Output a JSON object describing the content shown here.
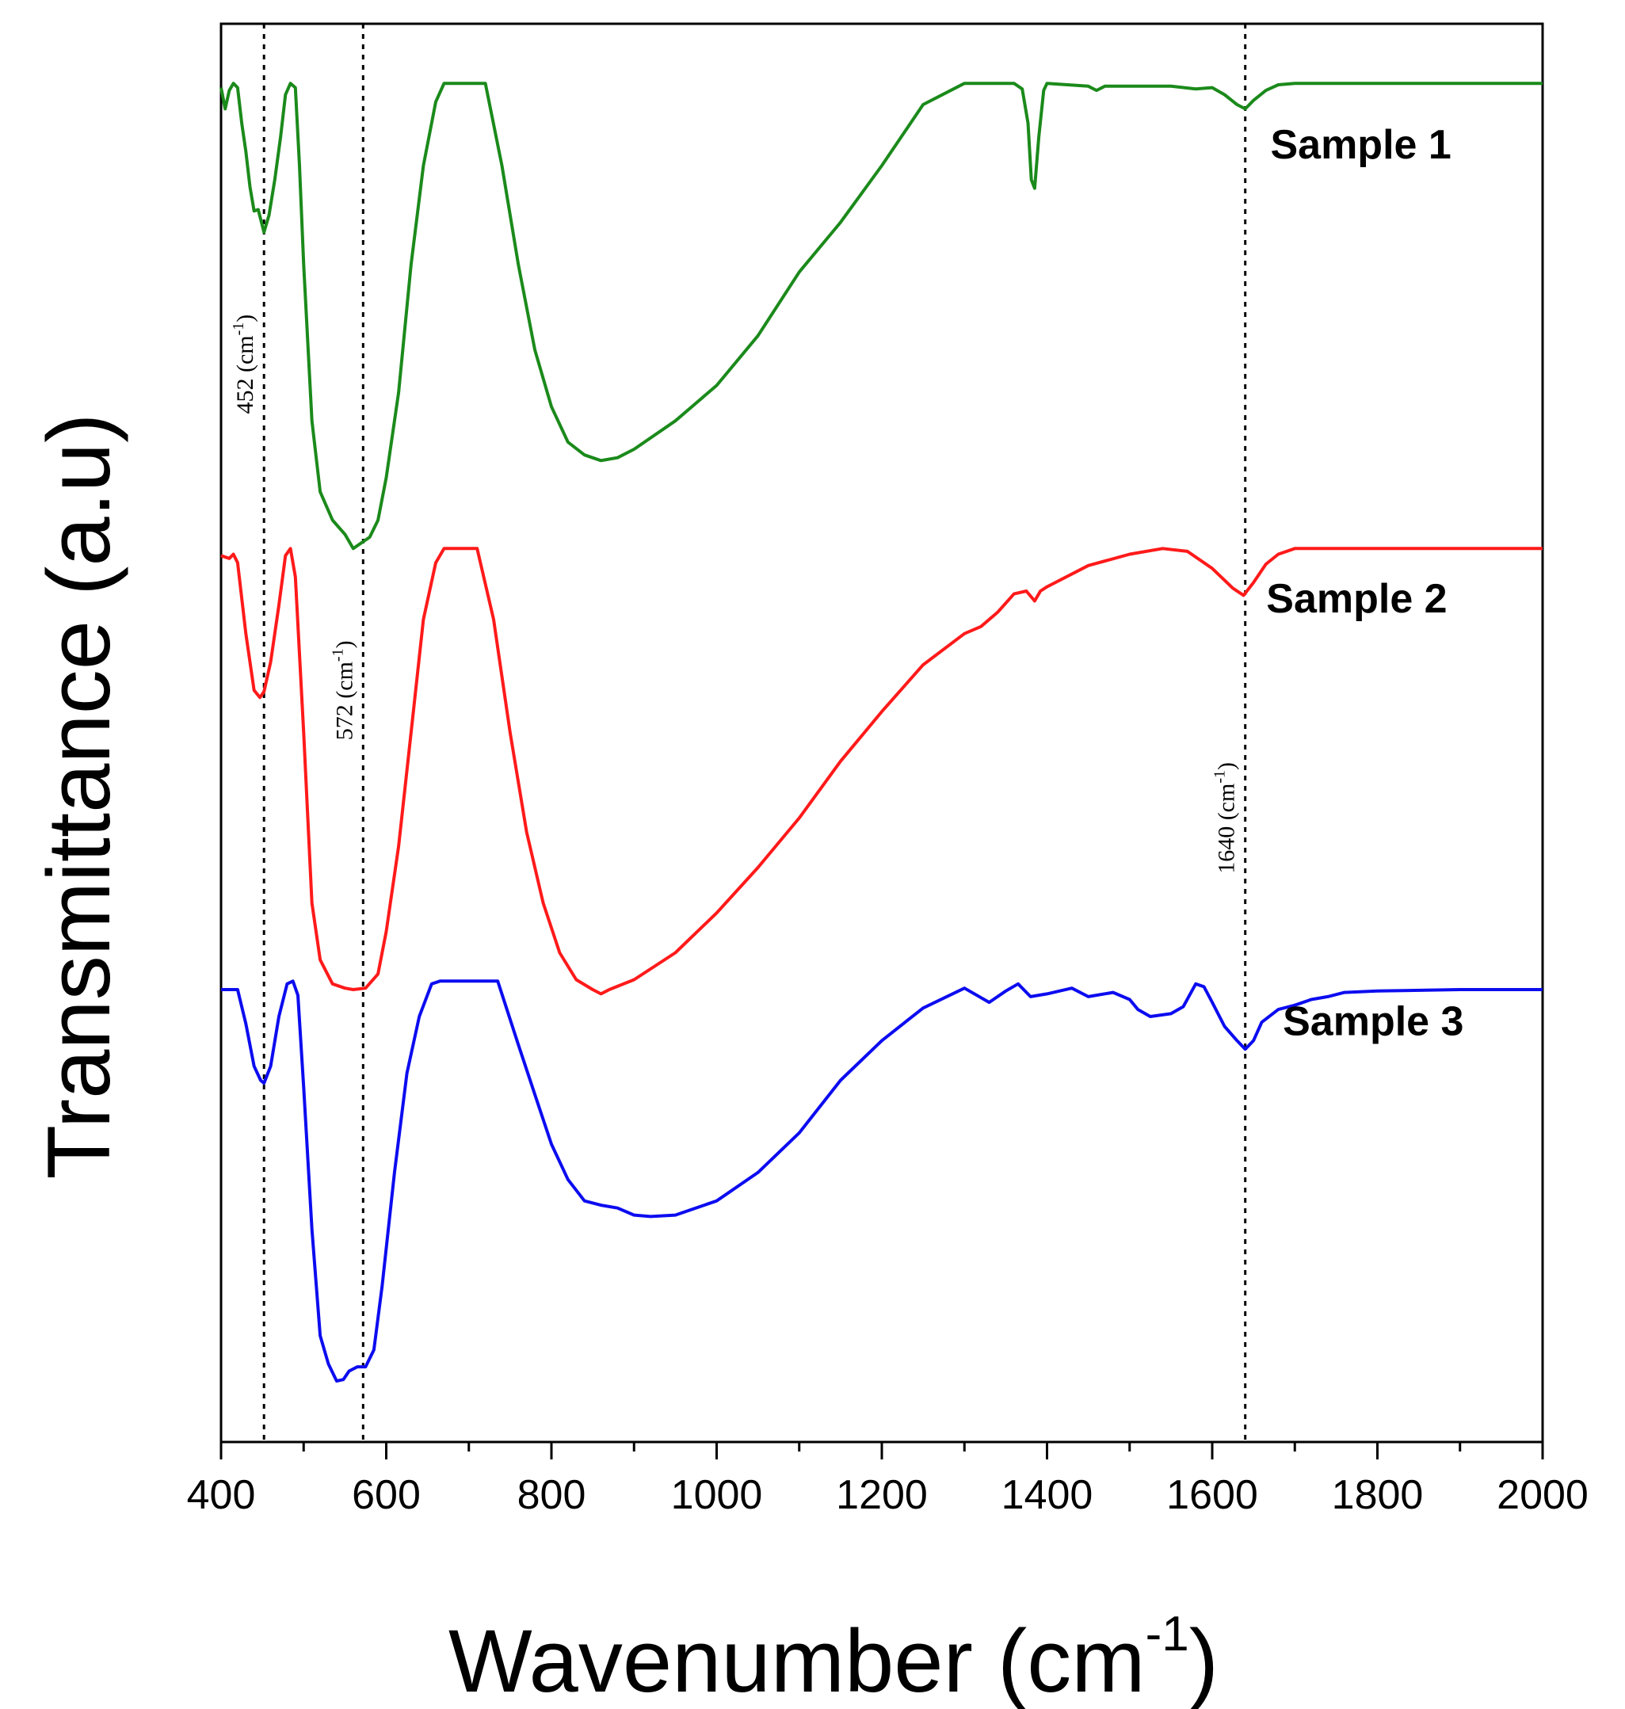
{
  "chart_data": {
    "type": "line",
    "title": "",
    "xlabel": "Wavenumber (cm",
    "xlabel_sup": "-1",
    "xlabel_close": ")",
    "ylabel": "Transmittance (a.u)",
    "xlim": [
      400,
      2000
    ],
    "ylim": [
      0,
      100
    ],
    "y_ticks_shown": false,
    "x_ticks": [
      400,
      600,
      800,
      1000,
      1200,
      1400,
      1600,
      1800,
      2000
    ],
    "x_tick_labels": [
      "400",
      "600",
      "800",
      "1000",
      "1200",
      "1400",
      "1600",
      "1800",
      "2000"
    ],
    "annotations": [
      {
        "x": 452,
        "label": "452 (cm",
        "sup": "-1",
        "close": ")",
        "label_y": 76
      },
      {
        "x": 572,
        "label": "572 (cm",
        "sup": "-1",
        "close": ")",
        "label_y": 53
      },
      {
        "x": 1640,
        "label": "1640 (cm",
        "sup": "-1",
        "close": ")",
        "label_y": 44
      }
    ],
    "series": [
      {
        "name": "Sample 1",
        "color": "#1b8a1b",
        "label_x": 1780,
        "label_y": 90.5,
        "points": [
          [
            400,
            95.5
          ],
          [
            405,
            94
          ],
          [
            410,
            95.3
          ],
          [
            415,
            95.8
          ],
          [
            420,
            95.5
          ],
          [
            425,
            93
          ],
          [
            430,
            91
          ],
          [
            435,
            88.5
          ],
          [
            440,
            86.8
          ],
          [
            445,
            86.9
          ],
          [
            452,
            85.3
          ],
          [
            458,
            86.5
          ],
          [
            465,
            89
          ],
          [
            472,
            92
          ],
          [
            478,
            95
          ],
          [
            484,
            95.8
          ],
          [
            490,
            95.5
          ],
          [
            495,
            90
          ],
          [
            500,
            83
          ],
          [
            510,
            72
          ],
          [
            520,
            67
          ],
          [
            535,
            65
          ],
          [
            550,
            64
          ],
          [
            560,
            63
          ],
          [
            570,
            63.4
          ],
          [
            580,
            63.8
          ],
          [
            590,
            65
          ],
          [
            600,
            68
          ],
          [
            615,
            74
          ],
          [
            630,
            83
          ],
          [
            645,
            90
          ],
          [
            660,
            94.5
          ],
          [
            670,
            95.8
          ],
          [
            720,
            95.8
          ],
          [
            740,
            90
          ],
          [
            760,
            83
          ],
          [
            780,
            77
          ],
          [
            800,
            73
          ],
          [
            820,
            70.5
          ],
          [
            840,
            69.6
          ],
          [
            860,
            69.2
          ],
          [
            880,
            69.4
          ],
          [
            900,
            70
          ],
          [
            950,
            72
          ],
          [
            1000,
            74.5
          ],
          [
            1050,
            78
          ],
          [
            1100,
            82.5
          ],
          [
            1150,
            86
          ],
          [
            1200,
            90
          ],
          [
            1250,
            94.3
          ],
          [
            1300,
            95.8
          ],
          [
            1360,
            95.8
          ],
          [
            1370,
            95.4
          ],
          [
            1377,
            93
          ],
          [
            1381,
            89
          ],
          [
            1385,
            88.4
          ],
          [
            1390,
            92
          ],
          [
            1396,
            95.3
          ],
          [
            1400,
            95.8
          ],
          [
            1450,
            95.6
          ],
          [
            1460,
            95.3
          ],
          [
            1470,
            95.6
          ],
          [
            1500,
            95.6
          ],
          [
            1550,
            95.6
          ],
          [
            1580,
            95.4
          ],
          [
            1600,
            95.5
          ],
          [
            1615,
            95
          ],
          [
            1630,
            94.3
          ],
          [
            1640,
            94
          ],
          [
            1650,
            94.6
          ],
          [
            1665,
            95.3
          ],
          [
            1680,
            95.7
          ],
          [
            1700,
            95.8
          ],
          [
            1800,
            95.8
          ],
          [
            1900,
            95.8
          ],
          [
            2000,
            95.8
          ]
        ]
      },
      {
        "name": "Sample 2",
        "color": "#ff1a1a",
        "label_x": 1775,
        "label_y": 58.5,
        "points": [
          [
            400,
            62.5
          ],
          [
            410,
            62.3
          ],
          [
            415,
            62.6
          ],
          [
            420,
            62
          ],
          [
            430,
            57
          ],
          [
            440,
            53
          ],
          [
            447,
            52.5
          ],
          [
            452,
            52.9
          ],
          [
            460,
            55
          ],
          [
            470,
            59
          ],
          [
            478,
            62.5
          ],
          [
            484,
            63
          ],
          [
            490,
            61
          ],
          [
            500,
            50
          ],
          [
            510,
            38
          ],
          [
            520,
            34
          ],
          [
            535,
            32.3
          ],
          [
            550,
            32
          ],
          [
            560,
            31.9
          ],
          [
            575,
            32
          ],
          [
            590,
            33
          ],
          [
            600,
            36
          ],
          [
            615,
            42
          ],
          [
            630,
            50
          ],
          [
            645,
            58
          ],
          [
            660,
            62
          ],
          [
            670,
            63
          ],
          [
            710,
            63
          ],
          [
            730,
            58
          ],
          [
            750,
            50
          ],
          [
            770,
            43
          ],
          [
            790,
            38
          ],
          [
            810,
            34.5
          ],
          [
            830,
            32.6
          ],
          [
            850,
            31.9
          ],
          [
            860,
            31.6
          ],
          [
            870,
            31.9
          ],
          [
            900,
            32.6
          ],
          [
            950,
            34.5
          ],
          [
            1000,
            37.3
          ],
          [
            1050,
            40.5
          ],
          [
            1100,
            44
          ],
          [
            1150,
            48
          ],
          [
            1200,
            51.5
          ],
          [
            1250,
            54.8
          ],
          [
            1300,
            57
          ],
          [
            1320,
            57.5
          ],
          [
            1340,
            58.5
          ],
          [
            1360,
            59.8
          ],
          [
            1375,
            60
          ],
          [
            1385,
            59.3
          ],
          [
            1392,
            60
          ],
          [
            1400,
            60.3
          ],
          [
            1450,
            61.8
          ],
          [
            1500,
            62.6
          ],
          [
            1540,
            63
          ],
          [
            1570,
            62.8
          ],
          [
            1600,
            61.6
          ],
          [
            1625,
            60.2
          ],
          [
            1638,
            59.7
          ],
          [
            1650,
            60.6
          ],
          [
            1665,
            61.9
          ],
          [
            1680,
            62.6
          ],
          [
            1700,
            63
          ],
          [
            1800,
            63
          ],
          [
            1900,
            63
          ],
          [
            2000,
            63
          ]
        ]
      },
      {
        "name": "Sample 3",
        "color": "#0c0cf0",
        "label_x": 1795,
        "label_y": 28.7,
        "points": [
          [
            400,
            31.9
          ],
          [
            420,
            31.9
          ],
          [
            430,
            29.5
          ],
          [
            440,
            26.5
          ],
          [
            448,
            25.5
          ],
          [
            452,
            25.3
          ],
          [
            460,
            26.5
          ],
          [
            470,
            30
          ],
          [
            480,
            32.3
          ],
          [
            487,
            32.5
          ],
          [
            493,
            31.5
          ],
          [
            500,
            25
          ],
          [
            510,
            15
          ],
          [
            520,
            7.5
          ],
          [
            530,
            5.5
          ],
          [
            540,
            4.3
          ],
          [
            548,
            4.4
          ],
          [
            555,
            5
          ],
          [
            565,
            5.3
          ],
          [
            575,
            5.3
          ],
          [
            585,
            6.5
          ],
          [
            595,
            11
          ],
          [
            610,
            19
          ],
          [
            625,
            26
          ],
          [
            640,
            30
          ],
          [
            655,
            32.3
          ],
          [
            665,
            32.5
          ],
          [
            735,
            32.5
          ],
          [
            760,
            28
          ],
          [
            780,
            24.5
          ],
          [
            800,
            21
          ],
          [
            820,
            18.5
          ],
          [
            840,
            17
          ],
          [
            860,
            16.7
          ],
          [
            880,
            16.5
          ],
          [
            900,
            16
          ],
          [
            920,
            15.9
          ],
          [
            950,
            16
          ],
          [
            1000,
            17
          ],
          [
            1050,
            19
          ],
          [
            1100,
            21.8
          ],
          [
            1150,
            25.5
          ],
          [
            1200,
            28.3
          ],
          [
            1250,
            30.6
          ],
          [
            1300,
            32
          ],
          [
            1330,
            31
          ],
          [
            1350,
            31.8
          ],
          [
            1365,
            32.3
          ],
          [
            1380,
            31.4
          ],
          [
            1400,
            31.6
          ],
          [
            1430,
            32
          ],
          [
            1450,
            31.4
          ],
          [
            1480,
            31.7
          ],
          [
            1500,
            31.2
          ],
          [
            1510,
            30.5
          ],
          [
            1525,
            30
          ],
          [
            1550,
            30.2
          ],
          [
            1565,
            30.7
          ],
          [
            1580,
            32.3
          ],
          [
            1590,
            32.1
          ],
          [
            1600,
            31
          ],
          [
            1615,
            29.3
          ],
          [
            1630,
            28.3
          ],
          [
            1640,
            27.7
          ],
          [
            1650,
            28.3
          ],
          [
            1660,
            29.6
          ],
          [
            1680,
            30.5
          ],
          [
            1700,
            30.8
          ],
          [
            1720,
            31.2
          ],
          [
            1740,
            31.4
          ],
          [
            1760,
            31.7
          ],
          [
            1800,
            31.8
          ],
          [
            1900,
            31.9
          ],
          [
            2000,
            31.9
          ]
        ]
      }
    ]
  }
}
